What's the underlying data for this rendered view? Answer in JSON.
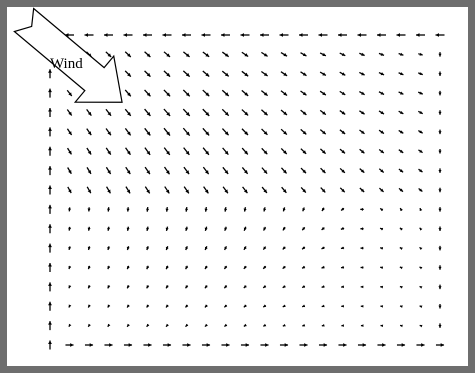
{
  "annotation": {
    "label": "Wind"
  }
}
